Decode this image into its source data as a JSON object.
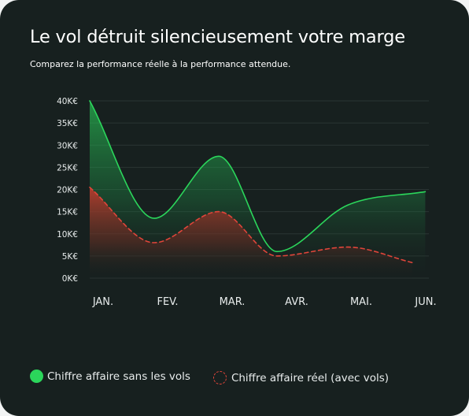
{
  "title": "Le vol détruit silencieusement votre marge",
  "subtitle": "Comparez la performance réelle à la performance attendue.",
  "colors": {
    "background": "#17201f",
    "series_without_theft": "#2bd65b",
    "series_actual": "#e0453a"
  },
  "legend": {
    "without_theft": "Chiffre affaire sans les vols",
    "actual": "Chiffre affaire réel (avec vols)"
  },
  "chart_data": {
    "type": "area",
    "categories": [
      "JAN.",
      "FEV.",
      "MAR.",
      "AVR.",
      "MAI.",
      "JUN."
    ],
    "ylim": [
      0,
      40000
    ],
    "yticks": [
      {
        "value": 0,
        "label": "0K€"
      },
      {
        "value": 5000,
        "label": "5K€"
      },
      {
        "value": 10000,
        "label": "10K€"
      },
      {
        "value": 15000,
        "label": "15K€"
      },
      {
        "value": 20000,
        "label": "20K€"
      },
      {
        "value": 25000,
        "label": "25K€"
      },
      {
        "value": 30000,
        "label": "30K€"
      },
      {
        "value": 35000,
        "label": "35K€"
      },
      {
        "value": 40000,
        "label": "40K€"
      }
    ],
    "series": [
      {
        "name": "Chiffre affaire sans les vols",
        "style": "solid",
        "points": [
          [
            0,
            40000
          ],
          [
            1,
            13500
          ],
          [
            2,
            27500
          ],
          [
            2.9,
            6000
          ],
          [
            4,
            16500
          ],
          [
            5.2,
            19500
          ]
        ]
      },
      {
        "name": "Chiffre affaire réel (avec vols)",
        "style": "dashed",
        "points": [
          [
            0,
            20500
          ],
          [
            1,
            8000
          ],
          [
            2,
            15000
          ],
          [
            2.9,
            5000
          ],
          [
            4,
            7000
          ],
          [
            5,
            3500
          ]
        ]
      }
    ],
    "grid": true,
    "legend_position": "bottom-left"
  }
}
